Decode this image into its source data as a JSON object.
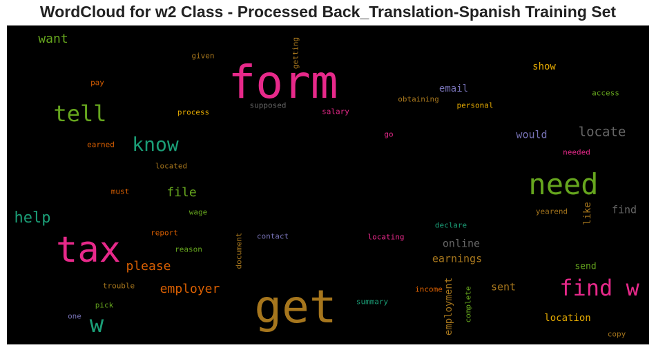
{
  "chart_data": {
    "type": "wordcloud",
    "title": "WordCloud for w2 Class - Processed Back_Translation-Spanish Training Set",
    "background": "#000000",
    "words": [
      {
        "text": "form",
        "color": "#e7298a"
      },
      {
        "text": "get",
        "color": "#a6761d"
      },
      {
        "text": "tax",
        "color": "#e7298a"
      },
      {
        "text": "need",
        "color": "#66a61e"
      },
      {
        "text": "find w",
        "color": "#e7298a"
      },
      {
        "text": "w",
        "color": "#1b9e77"
      },
      {
        "text": "tell",
        "color": "#66a61e"
      },
      {
        "text": "know",
        "color": "#1b9e77"
      },
      {
        "text": "help",
        "color": "#1b9e77"
      },
      {
        "text": "locate",
        "color": "#666666"
      },
      {
        "text": "please",
        "color": "#d95f02"
      },
      {
        "text": "employer",
        "color": "#d95f02"
      },
      {
        "text": "file",
        "color": "#66a61e"
      },
      {
        "text": "want",
        "color": "#66a61e"
      },
      {
        "text": "earnings",
        "color": "#a6761d"
      },
      {
        "text": "online",
        "color": "#666666"
      },
      {
        "text": "employment",
        "color": "#a6761d"
      },
      {
        "text": "show",
        "color": "#e6ab02"
      },
      {
        "text": "email",
        "color": "#7570b3"
      },
      {
        "text": "would",
        "color": "#7570b3"
      },
      {
        "text": "location",
        "color": "#e6ab02"
      },
      {
        "text": "sent",
        "color": "#a6761d"
      },
      {
        "text": "send",
        "color": "#66a61e"
      },
      {
        "text": "find",
        "color": "#666666"
      },
      {
        "text": "like",
        "color": "#a6761d"
      },
      {
        "text": "given",
        "color": "#a6761d"
      },
      {
        "text": "getting",
        "color": "#a6761d"
      },
      {
        "text": "pay",
        "color": "#d95f02"
      },
      {
        "text": "supposed",
        "color": "#666666"
      },
      {
        "text": "obtaining",
        "color": "#a6761d"
      },
      {
        "text": "personal",
        "color": "#e6ab02"
      },
      {
        "text": "access",
        "color": "#66a61e"
      },
      {
        "text": "process",
        "color": "#e6ab02"
      },
      {
        "text": "salary",
        "color": "#e7298a"
      },
      {
        "text": "earned",
        "color": "#d95f02"
      },
      {
        "text": "go",
        "color": "#e7298a"
      },
      {
        "text": "needed",
        "color": "#e7298a"
      },
      {
        "text": "located",
        "color": "#a6761d"
      },
      {
        "text": "must",
        "color": "#d95f02"
      },
      {
        "text": "wage",
        "color": "#66a61e"
      },
      {
        "text": "yearend",
        "color": "#a6761d"
      },
      {
        "text": "declare",
        "color": "#1b9e77"
      },
      {
        "text": "report",
        "color": "#d95f02"
      },
      {
        "text": "contact",
        "color": "#7570b3"
      },
      {
        "text": "locating",
        "color": "#e7298a"
      },
      {
        "text": "document",
        "color": "#a6761d"
      },
      {
        "text": "reason",
        "color": "#66a61e"
      },
      {
        "text": "trouble",
        "color": "#a6761d"
      },
      {
        "text": "income",
        "color": "#d95f02"
      },
      {
        "text": "summary",
        "color": "#1b9e77"
      },
      {
        "text": "complete",
        "color": "#66a61e"
      },
      {
        "text": "pick",
        "color": "#66a61e"
      },
      {
        "text": "one",
        "color": "#7570b3"
      },
      {
        "text": "copy",
        "color": "#a6761d"
      }
    ]
  }
}
